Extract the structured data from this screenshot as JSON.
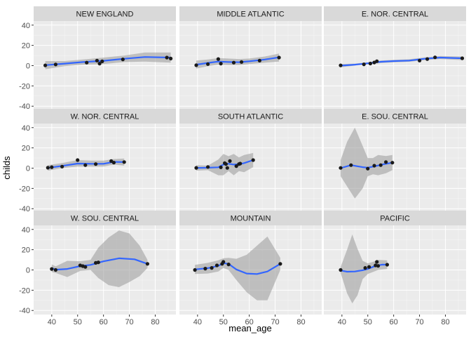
{
  "chart_data": {
    "type": "scatter",
    "facet_style": "ggplot2 facet_wrap 3x3 with loess smoothers and grey confidence bands",
    "xlabel": "mean_age",
    "ylabel": "childs",
    "xlim": [
      33,
      88
    ],
    "ylim": [
      -44,
      44
    ],
    "x_ticks": [
      40,
      50,
      60,
      70,
      80
    ],
    "y_ticks": [
      -40,
      -20,
      0,
      20,
      40
    ],
    "grid": true,
    "colors": {
      "panel_bg": "#EBEBEB",
      "strip_bg": "#D9D9D9",
      "grid_major": "#FFFFFF",
      "points": "#1A1A1A",
      "smooth_line": "#3366FF",
      "ribbon": "#999999"
    },
    "facets": [
      {
        "title": "NEW ENGLAND",
        "points": [
          [
            37.5,
            0.3
          ],
          [
            41.5,
            1.2
          ],
          [
            53.5,
            3
          ],
          [
            57.5,
            5
          ],
          [
            58.5,
            2
          ],
          [
            59.5,
            4.2
          ],
          [
            67.5,
            6.2
          ],
          [
            84.5,
            8
          ],
          [
            86,
            7
          ]
        ],
        "smooth": [
          [
            37.5,
            0.5
          ],
          [
            45,
            2
          ],
          [
            52,
            3.5
          ],
          [
            60,
            4.8
          ],
          [
            68,
            6.8
          ],
          [
            76,
            8.5
          ],
          [
            86,
            8
          ]
        ],
        "band": [
          [
            37.5,
            -3.5,
            4.5
          ],
          [
            45,
            -0.5,
            4.5
          ],
          [
            52,
            1,
            6
          ],
          [
            60,
            1.5,
            8
          ],
          [
            68,
            3.5,
            10
          ],
          [
            76,
            4,
            13
          ],
          [
            86,
            3,
            13
          ]
        ]
      },
      {
        "title": "MIDDLE ATLANTIC",
        "points": [
          [
            39.5,
            0.4
          ],
          [
            44,
            1.5
          ],
          [
            48,
            6.5
          ],
          [
            49,
            2
          ],
          [
            54,
            3
          ],
          [
            57,
            3.6
          ],
          [
            64,
            5
          ],
          [
            71.5,
            8
          ]
        ],
        "smooth": [
          [
            39.5,
            1
          ],
          [
            44,
            2.7
          ],
          [
            48,
            4
          ],
          [
            52,
            3.6
          ],
          [
            56,
            3.4
          ],
          [
            60,
            4.3
          ],
          [
            66,
            6
          ],
          [
            71.5,
            8.2
          ]
        ],
        "band": [
          [
            39.5,
            -3,
            5
          ],
          [
            44,
            -0.5,
            6
          ],
          [
            48,
            1,
            7.5
          ],
          [
            52,
            0.5,
            7
          ],
          [
            56,
            0.5,
            6.5
          ],
          [
            60,
            1.5,
            7
          ],
          [
            66,
            3,
            9
          ],
          [
            71.5,
            4,
            12
          ]
        ]
      },
      {
        "title": "E. NOR. CENTRAL",
        "points": [
          [
            39.5,
            0.3
          ],
          [
            48.5,
            1.3
          ],
          [
            51,
            2.1
          ],
          [
            52.5,
            3.1
          ],
          [
            53.5,
            4.4
          ],
          [
            70,
            5
          ],
          [
            73,
            6.5
          ],
          [
            76,
            8.2
          ],
          [
            86.5,
            7.3
          ]
        ],
        "smooth": [
          [
            39.5,
            0
          ],
          [
            45,
            1
          ],
          [
            50,
            2.3
          ],
          [
            55,
            3.8
          ],
          [
            60,
            4.5
          ],
          [
            66,
            5
          ],
          [
            72,
            6.8
          ],
          [
            78,
            8
          ],
          [
            86.5,
            7.3
          ]
        ],
        "band": [
          [
            39.5,
            -1.5,
            1.5
          ],
          [
            45,
            0,
            2
          ],
          [
            50,
            1.3,
            3.3
          ],
          [
            55,
            2.5,
            5
          ],
          [
            60,
            3.3,
            5.7
          ],
          [
            66,
            3.8,
            6.3
          ],
          [
            72,
            5.5,
            8.1
          ],
          [
            78,
            6.5,
            9.5
          ],
          [
            86.5,
            5.5,
            9
          ]
        ]
      },
      {
        "title": "W. NOR. CENTRAL",
        "points": [
          [
            38.5,
            0.4
          ],
          [
            40,
            1
          ],
          [
            44,
            1.5
          ],
          [
            50,
            8
          ],
          [
            53,
            3
          ],
          [
            57,
            4
          ],
          [
            63,
            7
          ],
          [
            64,
            5.5
          ],
          [
            68,
            6
          ]
        ],
        "smooth": [
          [
            38.5,
            0.2
          ],
          [
            44,
            2.2
          ],
          [
            50,
            4.5
          ],
          [
            55,
            4.3
          ],
          [
            60,
            4.3
          ],
          [
            64,
            6.2
          ],
          [
            68,
            6
          ]
        ],
        "band": [
          [
            38.5,
            -2.5,
            3
          ],
          [
            44,
            0,
            5
          ],
          [
            50,
            1.5,
            8
          ],
          [
            55,
            1.5,
            7.5
          ],
          [
            60,
            1.5,
            7.5
          ],
          [
            64,
            3.5,
            9
          ],
          [
            68,
            2.5,
            9.5
          ]
        ]
      },
      {
        "title": "SOUTH ATLANTIC",
        "points": [
          [
            39.5,
            0.3
          ],
          [
            44,
            1.2
          ],
          [
            49,
            0.8
          ],
          [
            50.5,
            5
          ],
          [
            51,
            4
          ],
          [
            51.5,
            0.2
          ],
          [
            52.5,
            7
          ],
          [
            55,
            2
          ],
          [
            56,
            4
          ],
          [
            56.5,
            4.5
          ],
          [
            61.5,
            8
          ]
        ],
        "smooth": [
          [
            39.5,
            0.2
          ],
          [
            44,
            0.4
          ],
          [
            48,
            0.8
          ],
          [
            50,
            3.5
          ],
          [
            52,
            4.4
          ],
          [
            54,
            3.5
          ],
          [
            56,
            3.8
          ],
          [
            58,
            5
          ],
          [
            61.5,
            8
          ]
        ],
        "band": [
          [
            39.5,
            -2.5,
            3
          ],
          [
            44,
            -2,
            2.5
          ],
          [
            48,
            -7,
            8.5
          ],
          [
            50,
            -7,
            14
          ],
          [
            52,
            -3,
            11.8
          ],
          [
            54,
            -7,
            14
          ],
          [
            56,
            -3,
            10.6
          ],
          [
            58,
            -4,
            13
          ],
          [
            61.5,
            1,
            15
          ]
        ]
      },
      {
        "title": "E. SOU. CENTRAL",
        "points": [
          [
            39.5,
            0.2
          ],
          [
            43.5,
            3
          ],
          [
            50,
            -0.5
          ],
          [
            52.5,
            2.4
          ],
          [
            55,
            3
          ],
          [
            57,
            6
          ],
          [
            59.5,
            5.4
          ]
        ],
        "smooth": [
          [
            39.5,
            0
          ],
          [
            43.5,
            3
          ],
          [
            48,
            1
          ],
          [
            50,
            0.5
          ],
          [
            53,
            2
          ],
          [
            56,
            3.8
          ],
          [
            59.5,
            5.4
          ]
        ],
        "band": [
          [
            39.5,
            -8,
            8
          ],
          [
            42,
            -18,
            26
          ],
          [
            45,
            -30,
            40
          ],
          [
            48,
            -20,
            22
          ],
          [
            50,
            -8,
            10
          ],
          [
            52,
            -6,
            10
          ],
          [
            54,
            -7,
            13
          ],
          [
            57,
            -5,
            12
          ],
          [
            59.5,
            -2,
            13
          ]
        ]
      },
      {
        "title": "W. SOU. CENTRAL",
        "points": [
          [
            40,
            1
          ],
          [
            41.5,
            0
          ],
          [
            51,
            4.5
          ],
          [
            52,
            3.8
          ],
          [
            53,
            3
          ],
          [
            57,
            7
          ],
          [
            58,
            7.5
          ],
          [
            77,
            6
          ]
        ],
        "smooth": [
          [
            40,
            1.8
          ],
          [
            41.5,
            0.3
          ],
          [
            46,
            1
          ],
          [
            51,
            3.8
          ],
          [
            55,
            5
          ],
          [
            60,
            8.5
          ],
          [
            66,
            11.5
          ],
          [
            72,
            10.5
          ],
          [
            77,
            6
          ]
        ],
        "band": [
          [
            40,
            -2,
            5.5
          ],
          [
            41.5,
            -3,
            3.5
          ],
          [
            46,
            -7,
            9
          ],
          [
            51,
            -1,
            8.6
          ],
          [
            55,
            0,
            10
          ],
          [
            58,
            -8,
            22
          ],
          [
            62,
            -15,
            32
          ],
          [
            66,
            -17,
            39
          ],
          [
            70,
            -12,
            36
          ],
          [
            74,
            -6,
            24
          ],
          [
            77,
            2,
            10
          ]
        ]
      },
      {
        "title": "MOUNTAIN",
        "points": [
          [
            39,
            0
          ],
          [
            43,
            1.3
          ],
          [
            45.5,
            2
          ],
          [
            47.5,
            4.5
          ],
          [
            49.5,
            6
          ],
          [
            50,
            8
          ],
          [
            52,
            5.5
          ],
          [
            72,
            6
          ]
        ],
        "smooth": [
          [
            39,
            0.5
          ],
          [
            44,
            1.8
          ],
          [
            48,
            4
          ],
          [
            50,
            6.7
          ],
          [
            52,
            6
          ],
          [
            55,
            0.5
          ],
          [
            59,
            -3.5
          ],
          [
            63,
            -4
          ],
          [
            67,
            -1.5
          ],
          [
            72,
            6
          ]
        ],
        "band": [
          [
            39,
            -4,
            5
          ],
          [
            44,
            -3.5,
            7
          ],
          [
            48,
            -1.5,
            9.5
          ],
          [
            50,
            2,
            11.5
          ],
          [
            52,
            0,
            12
          ],
          [
            55,
            -10,
            11
          ],
          [
            59,
            -22,
            15
          ],
          [
            63,
            -30,
            24
          ],
          [
            67,
            -30,
            33
          ],
          [
            72,
            0,
            12
          ]
        ]
      },
      {
        "title": "PACIFIC",
        "points": [
          [
            39.5,
            0
          ],
          [
            49,
            2
          ],
          [
            50.5,
            3
          ],
          [
            53,
            4.5
          ],
          [
            53.5,
            8
          ],
          [
            54,
            4
          ],
          [
            57.5,
            5.2
          ]
        ],
        "smooth": [
          [
            39.5,
            -0.5
          ],
          [
            42,
            -1.7
          ],
          [
            45,
            -1.5
          ],
          [
            48,
            -0.3
          ],
          [
            50,
            1
          ],
          [
            53,
            4
          ],
          [
            55.5,
            5.3
          ],
          [
            57.5,
            5.2
          ]
        ],
        "band": [
          [
            39.5,
            -3,
            3
          ],
          [
            42,
            -23,
            20
          ],
          [
            44,
            -33,
            35
          ],
          [
            46,
            -25,
            21
          ],
          [
            48,
            -9,
            9
          ],
          [
            50,
            -4,
            6.5
          ],
          [
            52,
            -2,
            8
          ],
          [
            54,
            0,
            10
          ],
          [
            57.5,
            1,
            9.5
          ]
        ]
      }
    ]
  }
}
